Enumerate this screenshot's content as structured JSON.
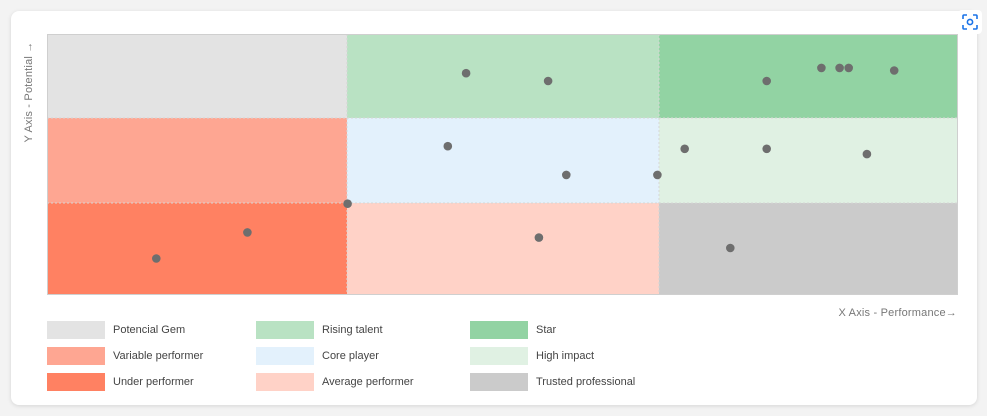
{
  "chart_data": {
    "type": "scatter",
    "title": "",
    "xlabel": "X Axis - Performance",
    "ylabel": "Y Axis - Potential",
    "x_arrow": "→",
    "y_arrow": "→",
    "xlim": [
      0,
      100
    ],
    "ylim": [
      0,
      100
    ],
    "grid": false,
    "legend_position": "bottom",
    "quadrants": [
      {
        "row": "top",
        "col": "left",
        "label": "Potencial Gem",
        "color": "#e3e3e3"
      },
      {
        "row": "top",
        "col": "middle",
        "label": "Rising talent",
        "color": "#b9e2c3"
      },
      {
        "row": "top",
        "col": "right",
        "label": "Star",
        "color": "#92d3a3"
      },
      {
        "row": "middle",
        "col": "left",
        "label": "Variable performer",
        "color": "#fea692"
      },
      {
        "row": "middle",
        "col": "middle",
        "label": "Core player",
        "color": "#e3f1fc"
      },
      {
        "row": "middle",
        "col": "right",
        "label": "High impact",
        "color": "#e0f1e3"
      },
      {
        "row": "bottom",
        "col": "left",
        "label": "Under performer",
        "color": "#ff8162"
      },
      {
        "row": "bottom",
        "col": "middle",
        "label": "Average performer",
        "color": "#ffd2c7"
      },
      {
        "row": "bottom",
        "col": "right",
        "label": "Trusted professional",
        "color": "#cbcbcb"
      }
    ],
    "series": [
      {
        "point_color": "#6e6e6e",
        "points": [
          {
            "x": 46,
            "y": 85
          },
          {
            "x": 55,
            "y": 82
          },
          {
            "x": 79,
            "y": 82
          },
          {
            "x": 85,
            "y": 87
          },
          {
            "x": 87,
            "y": 87
          },
          {
            "x": 88,
            "y": 87
          },
          {
            "x": 93,
            "y": 86
          },
          {
            "x": 44,
            "y": 57
          },
          {
            "x": 57,
            "y": 46
          },
          {
            "x": 67,
            "y": 46
          },
          {
            "x": 70,
            "y": 56
          },
          {
            "x": 79,
            "y": 56
          },
          {
            "x": 90,
            "y": 54
          },
          {
            "x": 33,
            "y": 35
          },
          {
            "x": 22,
            "y": 24
          },
          {
            "x": 12,
            "y": 14
          },
          {
            "x": 54,
            "y": 22
          },
          {
            "x": 75,
            "y": 18
          }
        ]
      }
    ]
  },
  "ui": {
    "focus_icon": "focus-scan-icon",
    "accent": "#1a73e8"
  }
}
